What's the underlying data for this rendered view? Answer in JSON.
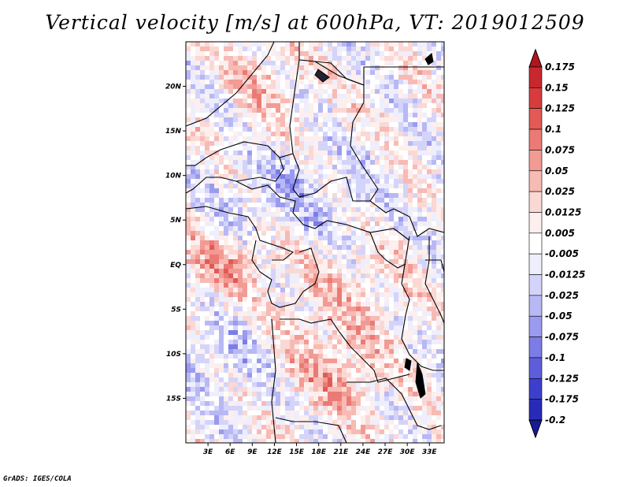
{
  "title": "Vertical velocity [m/s] at 600hPa, VT: 2019012509",
  "credit": "GrADS: IGES/COLA",
  "map": {
    "lon_range": [
      0,
      35
    ],
    "lat_range": [
      -20,
      25
    ],
    "x_ticks": [
      "3E",
      "6E",
      "9E",
      "12E",
      "15E",
      "18E",
      "21E",
      "24E",
      "27E",
      "30E",
      "33E"
    ],
    "y_ticks": [
      "20N",
      "15N",
      "10N",
      "5N",
      "EQ",
      "5S",
      "10S",
      "15S"
    ]
  },
  "colorbar": {
    "labels": [
      "0.175",
      "0.15",
      "0.125",
      "0.1",
      "0.075",
      "0.05",
      "0.025",
      "0.0125",
      "0.005",
      "-0.005",
      "-0.0125",
      "-0.025",
      "-0.05",
      "-0.075",
      "-0.1",
      "-0.125",
      "-0.175",
      "-0.2"
    ],
    "colors": [
      "#b4141e",
      "#c8282d",
      "#d73c3c",
      "#e15a55",
      "#eb7a74",
      "#f29a94",
      "#f8bab4",
      "#fbd8d4",
      "#fdefed",
      "#ffffff",
      "#eeeefd",
      "#d4d4fa",
      "#b8b8f5",
      "#9a9aef",
      "#7c7ce8",
      "#5e5edc",
      "#3e3ece",
      "#2a2ab8",
      "#1a1a96"
    ]
  }
}
